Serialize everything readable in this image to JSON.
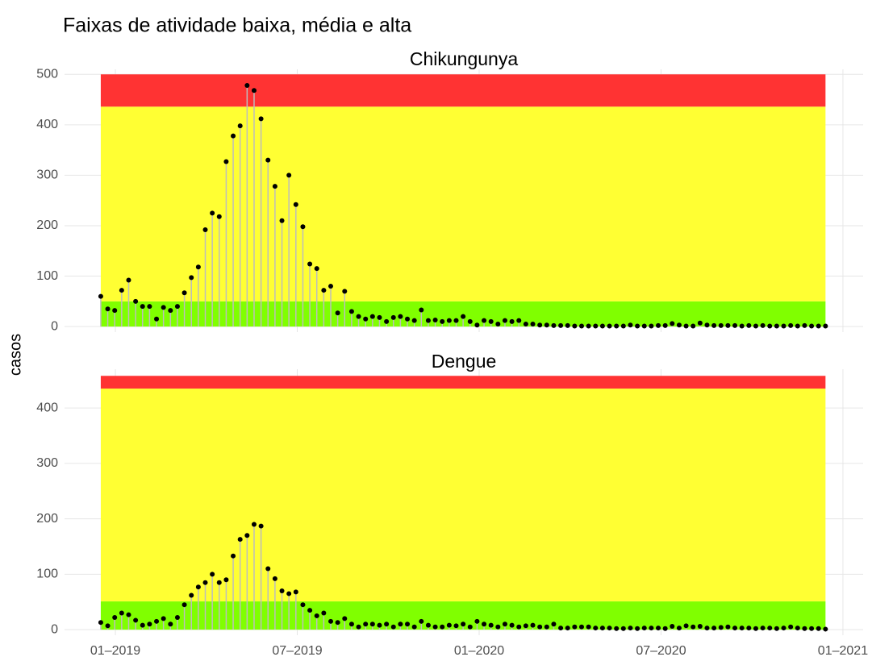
{
  "title": "Faixas de atividade baixa, média e alta",
  "ylabel": "casos",
  "chart_data": [
    {
      "type": "lollipop",
      "title": "Chikungunya",
      "x": [
        1,
        2,
        3,
        4,
        5,
        6,
        7,
        8,
        9,
        10,
        11,
        12,
        13,
        14,
        15,
        16,
        17,
        18,
        19,
        20,
        21,
        22,
        23,
        24,
        25,
        26,
        27,
        28,
        29,
        30,
        31,
        32,
        33,
        34,
        35,
        36,
        37,
        38,
        39,
        40,
        41,
        42,
        43,
        44,
        45,
        46,
        47,
        48,
        49,
        50,
        51,
        52,
        53,
        54,
        55,
        56,
        57,
        58,
        59,
        60,
        61,
        62,
        63,
        64,
        65,
        66,
        67,
        68,
        69,
        70,
        71,
        72,
        73,
        74,
        75,
        76,
        77,
        78,
        79,
        80,
        81,
        82,
        83,
        84,
        85,
        86,
        87,
        88,
        89,
        90,
        91,
        92,
        93,
        94,
        95,
        96,
        97,
        98,
        99,
        100,
        101,
        102,
        103,
        104,
        105
      ],
      "values": [
        60,
        35,
        32,
        72,
        92,
        50,
        40,
        40,
        15,
        38,
        32,
        40,
        67,
        97,
        118,
        192,
        225,
        218,
        327,
        378,
        398,
        478,
        468,
        412,
        330,
        278,
        210,
        300,
        242,
        198,
        124,
        115,
        72,
        80,
        27,
        70,
        30,
        20,
        15,
        20,
        18,
        10,
        18,
        20,
        15,
        12,
        33,
        12,
        13,
        10,
        12,
        12,
        20,
        10,
        3,
        12,
        10,
        5,
        12,
        10,
        12,
        5,
        5,
        3,
        3,
        2,
        2,
        2,
        1,
        1,
        1,
        1,
        1,
        1,
        1,
        1,
        3,
        1,
        1,
        1,
        2,
        2,
        6,
        3,
        1,
        1,
        7,
        3,
        2,
        2,
        2,
        2,
        1,
        2,
        1,
        2,
        1,
        1,
        1,
        2,
        1,
        2,
        1,
        1,
        1
      ],
      "color": "#000000",
      "stem_color": "#bdbdbd",
      "bands": [
        {
          "from": 0,
          "to": 50,
          "color": "#80ff00"
        },
        {
          "from": 50,
          "to": 436,
          "color": "#ffff33"
        },
        {
          "from": 436,
          "to": 500,
          "color": "#ff3333"
        }
      ],
      "xlim": [
        -4.2,
        110.4
      ],
      "ylim": [
        -11,
        510
      ],
      "xticks": [
        {
          "value": 3.1,
          "label": "01–2019"
        },
        {
          "value": 29.2,
          "label": "07–2019"
        },
        {
          "value": 55.3,
          "label": "01–2020"
        },
        {
          "value": 81.4,
          "label": "07–2020"
        },
        {
          "value": 107.5,
          "label": "01–2021"
        }
      ],
      "yticks": [
        0,
        100,
        200,
        300,
        400,
        500
      ],
      "grid": true,
      "show_xtick_labels": false
    },
    {
      "type": "lollipop",
      "title": "Dengue",
      "x": [
        1,
        2,
        3,
        4,
        5,
        6,
        7,
        8,
        9,
        10,
        11,
        12,
        13,
        14,
        15,
        16,
        17,
        18,
        19,
        20,
        21,
        22,
        23,
        24,
        25,
        26,
        27,
        28,
        29,
        30,
        31,
        32,
        33,
        34,
        35,
        36,
        37,
        38,
        39,
        40,
        41,
        42,
        43,
        44,
        45,
        46,
        47,
        48,
        49,
        50,
        51,
        52,
        53,
        54,
        55,
        56,
        57,
        58,
        59,
        60,
        61,
        62,
        63,
        64,
        65,
        66,
        67,
        68,
        69,
        70,
        71,
        72,
        73,
        74,
        75,
        76,
        77,
        78,
        79,
        80,
        81,
        82,
        83,
        84,
        85,
        86,
        87,
        88,
        89,
        90,
        91,
        92,
        93,
        94,
        95,
        96,
        97,
        98,
        99,
        100,
        101,
        102,
        103,
        104,
        105
      ],
      "values": [
        13,
        7,
        22,
        30,
        27,
        17,
        8,
        10,
        15,
        20,
        10,
        22,
        45,
        62,
        77,
        85,
        100,
        85,
        90,
        133,
        163,
        170,
        190,
        187,
        110,
        92,
        70,
        65,
        68,
        45,
        35,
        25,
        30,
        15,
        13,
        20,
        10,
        5,
        10,
        10,
        8,
        10,
        5,
        10,
        10,
        5,
        15,
        8,
        5,
        5,
        8,
        7,
        10,
        5,
        15,
        10,
        8,
        5,
        10,
        8,
        5,
        7,
        8,
        5,
        5,
        10,
        3,
        3,
        5,
        5,
        5,
        3,
        3,
        3,
        2,
        2,
        3,
        2,
        3,
        3,
        3,
        2,
        6,
        3,
        7,
        5,
        6,
        3,
        3,
        4,
        5,
        3,
        3,
        3,
        2,
        3,
        3,
        2,
        3,
        5,
        3,
        2,
        2,
        2,
        1
      ],
      "color": "#000000",
      "stem_color": "#bdbdbd",
      "bands": [
        {
          "from": 0,
          "to": 51,
          "color": "#80ff00"
        },
        {
          "from": 51,
          "to": 435,
          "color": "#ffff33"
        },
        {
          "from": 435,
          "to": 458,
          "color": "#ff3333"
        }
      ],
      "xlim": [
        -4.2,
        110.4
      ],
      "ylim": [
        -10,
        470
      ],
      "xticks": [
        {
          "value": 3.1,
          "label": "01–2019"
        },
        {
          "value": 29.2,
          "label": "07–2019"
        },
        {
          "value": 55.3,
          "label": "01–2020"
        },
        {
          "value": 81.4,
          "label": "07–2020"
        },
        {
          "value": 107.5,
          "label": "01–2021"
        }
      ],
      "yticks": [
        0,
        100,
        200,
        300,
        400
      ],
      "grid": true,
      "show_xtick_labels": true
    }
  ]
}
